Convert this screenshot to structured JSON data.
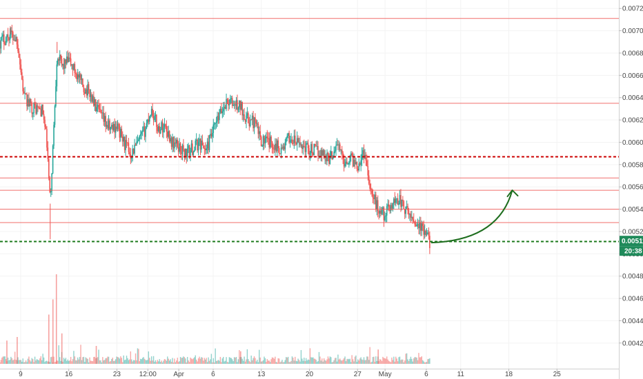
{
  "chart_data": {
    "type": "candlestick",
    "title": "",
    "xlabel": "",
    "ylabel": "",
    "ylim": [
      0.0041,
      0.00722
    ],
    "y_ticks": [
      "0.007200",
      "0.007000",
      "0.006800",
      "0.006600",
      "0.006400",
      "0.006200",
      "0.006000",
      "0.005800",
      "0.005600",
      "0.005400",
      "0.005200",
      "0.005000",
      "0.004800",
      "0.004600",
      "0.004400",
      "0.004200"
    ],
    "x_ticks": [
      "9",
      "16",
      "23",
      "12:00",
      "Apr",
      "6",
      "13",
      "20",
      "27",
      "May",
      "6",
      "11",
      "18",
      "25"
    ],
    "x_tick_days": [
      9,
      16,
      23,
      27.5,
      32,
      37,
      44,
      51,
      58,
      62,
      68,
      73,
      80,
      87
    ],
    "x_range_days": [
      6,
      96
    ],
    "last_data_day": 68.5,
    "colors": {
      "up": "#26a69a",
      "down": "#ef5350",
      "resistance": "#ef5350",
      "key_level": "#cc0000",
      "support": "#1b7a1b",
      "arrow": "#1f6e1f",
      "badge": "#1f8a5a"
    },
    "horizontal_levels": [
      {
        "price": 0.00711,
        "style": "solid",
        "role": "resistance"
      },
      {
        "price": 0.00635,
        "style": "solid",
        "role": "resistance"
      },
      {
        "price": 0.00587,
        "style": "dashed",
        "role": "key_level"
      },
      {
        "price": 0.00568,
        "style": "solid",
        "role": "resistance"
      },
      {
        "price": 0.00557,
        "style": "solid",
        "role": "resistance"
      },
      {
        "price": 0.0054,
        "style": "solid",
        "role": "resistance"
      },
      {
        "price": 0.00528,
        "style": "solid",
        "role": "resistance"
      },
      {
        "price": 0.00511,
        "style": "dashed",
        "role": "support"
      }
    ],
    "price_path": [
      [
        6.0,
        0.0069
      ],
      [
        7.5,
        0.00697
      ],
      [
        8.5,
        0.00692
      ],
      [
        9.5,
        0.0064
      ],
      [
        10.5,
        0.00632
      ],
      [
        11.5,
        0.0063
      ],
      [
        12.2,
        0.00628
      ],
      [
        12.8,
        0.006
      ],
      [
        13.3,
        0.00545
      ],
      [
        13.8,
        0.0061
      ],
      [
        14.3,
        0.0068
      ],
      [
        15.0,
        0.00668
      ],
      [
        16.0,
        0.00673
      ],
      [
        17.0,
        0.00663
      ],
      [
        18.0,
        0.0065
      ],
      [
        19.0,
        0.00645
      ],
      [
        20.0,
        0.0063
      ],
      [
        21.0,
        0.0062
      ],
      [
        22.0,
        0.00612
      ],
      [
        23.0,
        0.00615
      ],
      [
        24.0,
        0.006
      ],
      [
        25.0,
        0.0059
      ],
      [
        26.0,
        0.00598
      ],
      [
        27.0,
        0.0061
      ],
      [
        28.0,
        0.0063
      ],
      [
        29.0,
        0.00612
      ],
      [
        30.0,
        0.00615
      ],
      [
        31.0,
        0.006
      ],
      [
        32.0,
        0.00596
      ],
      [
        33.0,
        0.0059
      ],
      [
        34.0,
        0.00594
      ],
      [
        35.0,
        0.006
      ],
      [
        36.0,
        0.00593
      ],
      [
        37.0,
        0.0061
      ],
      [
        38.0,
        0.00625
      ],
      [
        39.0,
        0.00637
      ],
      [
        40.0,
        0.00634
      ],
      [
        41.0,
        0.00632
      ],
      [
        42.0,
        0.0062
      ],
      [
        43.0,
        0.00618
      ],
      [
        44.0,
        0.00602
      ],
      [
        45.0,
        0.006
      ],
      [
        46.0,
        0.00598
      ],
      [
        47.0,
        0.00593
      ],
      [
        48.0,
        0.00604
      ],
      [
        49.0,
        0.006
      ],
      [
        50.0,
        0.00597
      ],
      [
        51.0,
        0.00594
      ],
      [
        52.0,
        0.00592
      ],
      [
        53.0,
        0.0059
      ],
      [
        54.0,
        0.00585
      ],
      [
        55.0,
        0.006
      ],
      [
        56.0,
        0.00583
      ],
      [
        57.0,
        0.00586
      ],
      [
        58.0,
        0.0058
      ],
      [
        59.0,
        0.00592
      ],
      [
        60.0,
        0.00555
      ],
      [
        61.0,
        0.0054
      ],
      [
        62.0,
        0.00535
      ],
      [
        63.0,
        0.00545
      ],
      [
        64.0,
        0.0055
      ],
      [
        65.0,
        0.00538
      ],
      [
        66.0,
        0.00532
      ],
      [
        67.0,
        0.00525
      ],
      [
        68.5,
        0.00511
      ]
    ],
    "spikes": [
      {
        "day": 13.3,
        "low": 0.00513
      },
      {
        "day": 7.5,
        "high": 0.00704
      },
      {
        "day": 14.3,
        "high": 0.0069
      }
    ],
    "volume_spikes": [
      {
        "day": 14.2,
        "level": 1.0
      },
      {
        "day": 13.7,
        "level": 0.72
      },
      {
        "day": 13.1,
        "level": 0.55
      },
      {
        "day": 15.0,
        "level": 0.34
      },
      {
        "day": 8.5,
        "level": 0.3
      },
      {
        "day": 7.0,
        "level": 0.26
      },
      {
        "day": 20.0,
        "level": 0.2
      },
      {
        "day": 41.0,
        "level": 0.14
      },
      {
        "day": 61.0,
        "level": 0.16
      }
    ],
    "current_price": {
      "price": 0.005112,
      "label": "0.005112",
      "countdown": "20:38"
    },
    "projection_arrow": {
      "start": [
        68.7,
        0.0051
      ],
      "control": [
        78.5,
        0.00512
      ],
      "end": [
        80.5,
        0.00557
      ]
    }
  }
}
